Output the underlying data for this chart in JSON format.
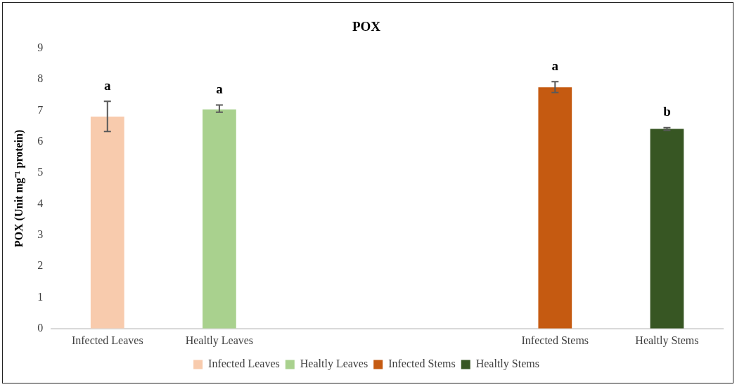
{
  "chart_data": {
    "type": "bar",
    "title": "POX",
    "ylabel": "POX (Unit mg⁻¹ protein)",
    "categories": [
      "Infected Leaves",
      "Healtly Leaves",
      null,
      null,
      "Infected Stems",
      "Healtly Stems"
    ],
    "series": [
      {
        "name": "Infected Leaves",
        "color": "#f8cbad",
        "values": [
          6.81,
          null,
          null,
          null,
          null,
          null
        ],
        "errors": [
          [
            6.33,
            7.3
          ],
          null,
          null,
          null,
          null,
          null
        ]
      },
      {
        "name": "Healtly Leaves",
        "color": "#a9d18e",
        "values": [
          null,
          7.04,
          null,
          null,
          null,
          null
        ],
        "errors": [
          null,
          [
            6.95,
            7.18
          ],
          null,
          null,
          null,
          null
        ]
      },
      {
        "name": "Infected Stems",
        "color": "#c55a11",
        "values": [
          null,
          null,
          null,
          null,
          7.75,
          null
        ],
        "errors": [
          null,
          null,
          null,
          null,
          [
            7.58,
            7.93
          ],
          null
        ]
      },
      {
        "name": "Healtly Stems",
        "color": "#375623",
        "values": [
          null,
          null,
          null,
          null,
          null,
          6.41
        ],
        "errors": [
          null,
          null,
          null,
          null,
          null,
          [
            6.37,
            6.45
          ]
        ]
      }
    ],
    "ylim": [
      0,
      9
    ],
    "yticks": [
      0,
      1,
      2,
      3,
      4,
      5,
      6,
      7,
      8,
      9
    ],
    "grid": false,
    "legend": "bottom",
    "annotations": [
      "a",
      "a",
      "a",
      "b"
    ]
  }
}
